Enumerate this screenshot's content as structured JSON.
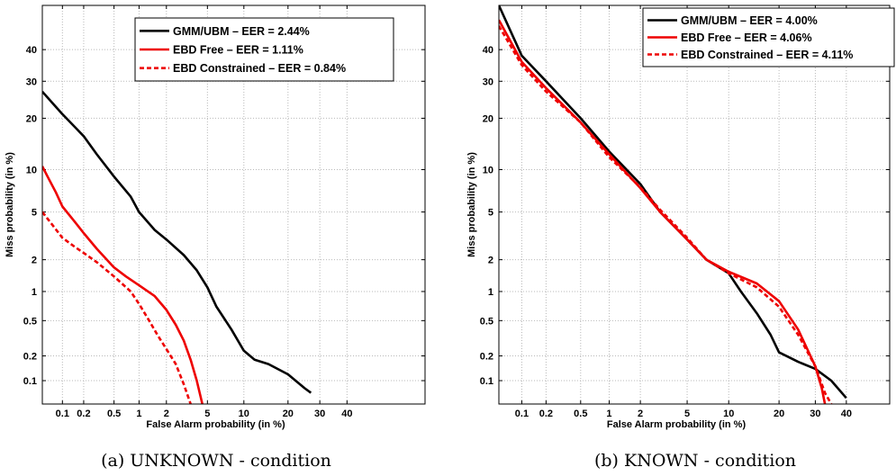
{
  "chart_data": [
    {
      "type": "line",
      "scale": "normal-deviate (DET)",
      "caption": "(a)  UNKNOWN - condition",
      "xlabel": "False Alarm probability (in %)",
      "ylabel": "Miss probability (in %)",
      "xlim": [
        0.05,
        70
      ],
      "ylim": [
        0.05,
        55
      ],
      "x_ticks": [
        "0.1",
        "0.2",
        "0.5",
        "1",
        "2",
        "5",
        "10",
        "20",
        "30",
        "40"
      ],
      "y_ticks": [
        "0.1",
        "0.2",
        "0.5",
        "1",
        "2",
        "5",
        "10",
        "20",
        "30",
        "40"
      ],
      "grid": true,
      "legend_position": "top-right",
      "series": [
        {
          "name": "GMM/UBM – EER = 2.44%",
          "color": "#000000",
          "dash": "solid",
          "x": [
            0.05,
            0.07,
            0.1,
            0.15,
            0.2,
            0.3,
            0.5,
            0.8,
            1,
            1.5,
            2,
            3,
            4,
            5,
            6,
            8,
            10,
            12,
            15,
            20,
            25,
            27
          ],
          "y": [
            27,
            24,
            21,
            18,
            16,
            12.5,
            9,
            6.5,
            5,
            3.6,
            3,
            2.2,
            1.6,
            1.1,
            0.7,
            0.4,
            0.23,
            0.18,
            0.16,
            0.12,
            0.08,
            0.07
          ]
        },
        {
          "name": "EBD Free – EER = 1.11%",
          "color": "#ee0000",
          "dash": "solid",
          "x": [
            0.05,
            0.06,
            0.08,
            0.1,
            0.15,
            0.2,
            0.3,
            0.5,
            0.7,
            1,
            1.5,
            2,
            2.5,
            3,
            3.5,
            4,
            4.5
          ],
          "y": [
            10.5,
            9,
            7,
            5.5,
            4.2,
            3.4,
            2.5,
            1.7,
            1.4,
            1.15,
            0.9,
            0.65,
            0.45,
            0.3,
            0.18,
            0.1,
            0.05
          ]
        },
        {
          "name": "EBD Constrained – EER = 0.84%",
          "color": "#ee0000",
          "dash": "dashed",
          "x": [
            0.05,
            0.07,
            0.1,
            0.15,
            0.2,
            0.3,
            0.5,
            0.8,
            1,
            1.3,
            1.6,
            2,
            2.5,
            3,
            3.5
          ],
          "y": [
            5,
            4,
            3.1,
            2.6,
            2.3,
            1.9,
            1.4,
            1,
            0.75,
            0.5,
            0.35,
            0.24,
            0.16,
            0.09,
            0.05
          ]
        }
      ]
    },
    {
      "type": "line",
      "scale": "normal-deviate (DET)",
      "caption": "(b)  KNOWN - condition",
      "xlabel": "False Alarm probability (in %)",
      "ylabel": "Miss probability (in %)",
      "xlim": [
        0.05,
        55
      ],
      "ylim": [
        0.05,
        55
      ],
      "x_ticks": [
        "0.1",
        "0.2",
        "0.5",
        "1",
        "2",
        "5",
        "10",
        "20",
        "30",
        "40"
      ],
      "y_ticks": [
        "0.1",
        "0.2",
        "0.5",
        "1",
        "2",
        "5",
        "10",
        "20",
        "30",
        "40"
      ],
      "grid": true,
      "legend_position": "top-right",
      "series": [
        {
          "name": "GMM/UBM – EER = 4.00%",
          "color": "#000000",
          "dash": "solid",
          "x": [
            0.05,
            0.1,
            0.2,
            0.5,
            1,
            2,
            3,
            5,
            7,
            10,
            12,
            15,
            18,
            20,
            25,
            30,
            35,
            40
          ],
          "y": [
            55,
            38,
            30,
            20,
            13,
            8,
            5,
            3,
            2,
            1.5,
            1.0,
            0.6,
            0.35,
            0.22,
            0.17,
            0.14,
            0.1,
            0.06
          ]
        },
        {
          "name": "EBD Free – EER = 4.06%",
          "color": "#ee0000",
          "dash": "solid",
          "x": [
            0.05,
            0.1,
            0.2,
            0.5,
            1,
            2,
            3,
            5,
            7,
            10,
            15,
            20,
            25,
            30,
            32,
            33
          ],
          "y": [
            50,
            36,
            28,
            19,
            12.5,
            7.5,
            5,
            3,
            2,
            1.55,
            1.2,
            0.8,
            0.4,
            0.15,
            0.08,
            0.05
          ]
        },
        {
          "name": "EBD Constrained – EER = 4.11%",
          "color": "#ee0000",
          "dash": "dashed",
          "x": [
            0.05,
            0.1,
            0.2,
            0.5,
            1,
            2,
            3,
            5,
            7,
            10,
            15,
            20,
            25,
            30,
            33,
            35
          ],
          "y": [
            48,
            35,
            27,
            19,
            12,
            7.6,
            5.2,
            3.1,
            2,
            1.5,
            1.1,
            0.7,
            0.35,
            0.15,
            0.07,
            0.05
          ]
        }
      ]
    }
  ]
}
